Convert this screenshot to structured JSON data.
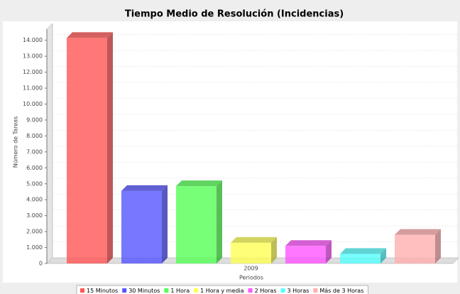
{
  "chart_data": {
    "type": "bar3d",
    "title": "Tiempo Medio de Resolución (Incidencias)",
    "x_label": "Periodos",
    "y_label": "Número de Tareas",
    "categories": [
      "2009"
    ],
    "series": [
      {
        "name": "15 Minutos",
        "color": "#ff5555",
        "values": [
          14150
        ]
      },
      {
        "name": "30 Minutos",
        "color": "#5555ff",
        "values": [
          4550
        ]
      },
      {
        "name": "1 Hora",
        "color": "#55ff55",
        "values": [
          4850
        ]
      },
      {
        "name": "1 Hora y media",
        "color": "#ffff55",
        "values": [
          1300
        ]
      },
      {
        "name": "2 Horas",
        "color": "#ff55ff",
        "values": [
          1100
        ]
      },
      {
        "name": "3 Horas",
        "color": "#55ffff",
        "values": [
          600
        ]
      },
      {
        "name": "Más de 3 Horas",
        "color": "#ffafaf",
        "values": [
          1800
        ]
      }
    ],
    "ylim": [
      0,
      14700
    ],
    "yticks": [
      0,
      {
        "value": 1000,
        "label": "1.000"
      },
      {
        "value": 2000,
        "label": "2.000"
      },
      {
        "value": 3000,
        "label": "3.000"
      },
      {
        "value": 4000,
        "label": "4.000"
      },
      {
        "value": 5000,
        "label": "5.000"
      },
      {
        "value": 6000,
        "label": "6.000"
      },
      {
        "value": 7000,
        "label": "7.000"
      },
      {
        "value": 8000,
        "label": "8.000"
      },
      {
        "value": 9000,
        "label": "9.000"
      },
      {
        "value": 10000,
        "label": "10.000"
      },
      {
        "value": 11000,
        "label": "11.000"
      },
      {
        "value": 12000,
        "label": "12.000"
      },
      {
        "value": 13000,
        "label": "13.000"
      },
      {
        "value": 14000,
        "label": "14.000"
      }
    ],
    "grid": true,
    "legend": "bottom"
  }
}
